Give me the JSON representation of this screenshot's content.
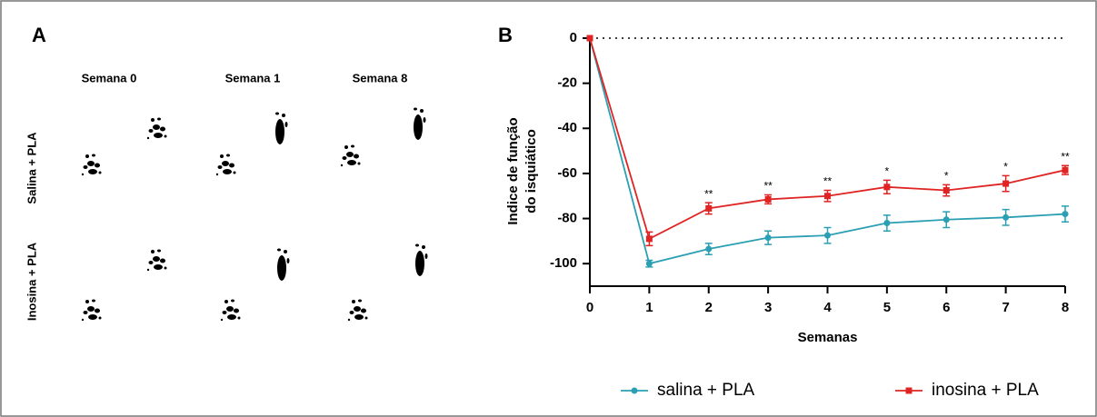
{
  "panel_labels": [
    "A",
    "B"
  ],
  "footprints": {
    "columns": [
      "Semana 0",
      "Semana 1",
      "Semana 8"
    ],
    "rows": [
      "Salina + PLA",
      "Inosina + PLA"
    ]
  },
  "chart_data": {
    "type": "line",
    "xlabel": "Semanas",
    "ylabel": [
      "Indice de função",
      "do isquiático"
    ],
    "x": [
      0,
      1,
      2,
      3,
      4,
      5,
      6,
      7,
      8
    ],
    "xlim": [
      0,
      8
    ],
    "xticks": [
      0,
      1,
      2,
      3,
      4,
      5,
      6,
      7,
      8
    ],
    "ylim": [
      -110,
      0
    ],
    "yticks": [
      0,
      -20,
      -40,
      -60,
      -80,
      -100
    ],
    "zero_line": true,
    "legend": "bottom",
    "series": [
      {
        "name": "salina + PLA",
        "color": "#2b9fb3",
        "marker": "circle",
        "values": [
          0,
          -100,
          -93.5,
          -88.5,
          -87.5,
          -82,
          -80.5,
          -79.5,
          -78
        ],
        "errors": [
          0,
          1.5,
          2.5,
          3,
          3.5,
          3.5,
          3.5,
          3.5,
          3.5
        ]
      },
      {
        "name": "inosina + PLA",
        "color": "#e02424",
        "marker": "square",
        "values": [
          0,
          -89,
          -75.5,
          -71.5,
          -70,
          -66,
          -67.5,
          -64.5,
          -58.5
        ],
        "errors": [
          0,
          3,
          2.5,
          2,
          2.5,
          3,
          2.5,
          3.5,
          2
        ]
      }
    ],
    "significance": [
      null,
      null,
      "**",
      "**",
      "**",
      "*",
      "*",
      "*",
      "**"
    ]
  }
}
